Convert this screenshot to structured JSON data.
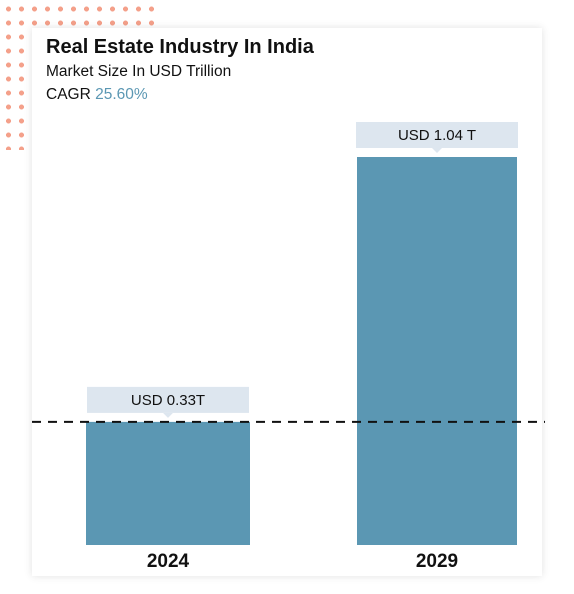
{
  "colors": {
    "bar": "#5b97b3",
    "label_box": "#dde6ef",
    "accent": "#5b97b3",
    "decor_dots": "#f4a08a"
  },
  "header": {
    "title": "Real Estate Industry In India",
    "subtitle": "Market Size In USD Trillion",
    "cagr_label": "CAGR",
    "cagr_value": "25.60%"
  },
  "chart_data": {
    "type": "bar",
    "title": "Real Estate Industry In India",
    "subtitle": "Market Size In USD Trillion",
    "categories": [
      "2024",
      "2029"
    ],
    "values": [
      0.33,
      1.04
    ],
    "data_labels": [
      "USD 0.33T",
      "USD 1.04 T"
    ],
    "cagr": "25.60%",
    "reference_line": 0.33,
    "grid": false,
    "legend": "none"
  }
}
